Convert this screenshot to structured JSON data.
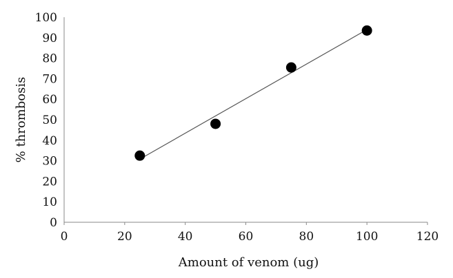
{
  "chart_data": {
    "type": "scatter",
    "title": "",
    "xlabel": "Amount of venom (ug)",
    "ylabel": "% thrombosis",
    "xlim": [
      0,
      120
    ],
    "ylim": [
      0,
      100
    ],
    "x_ticks": [
      0,
      20,
      40,
      60,
      80,
      100,
      120
    ],
    "y_ticks": [
      0,
      10,
      20,
      30,
      40,
      50,
      60,
      70,
      80,
      90,
      100
    ],
    "grid": false,
    "legend": "none",
    "series": [
      {
        "x": [
          25,
          50,
          75,
          100
        ],
        "y": [
          32.5,
          48,
          75.5,
          93.5
        ],
        "marker_color": "#000000"
      }
    ],
    "trendline": {
      "type": "linear",
      "color": "#555555",
      "x_range": [
        25,
        100
      ]
    }
  }
}
